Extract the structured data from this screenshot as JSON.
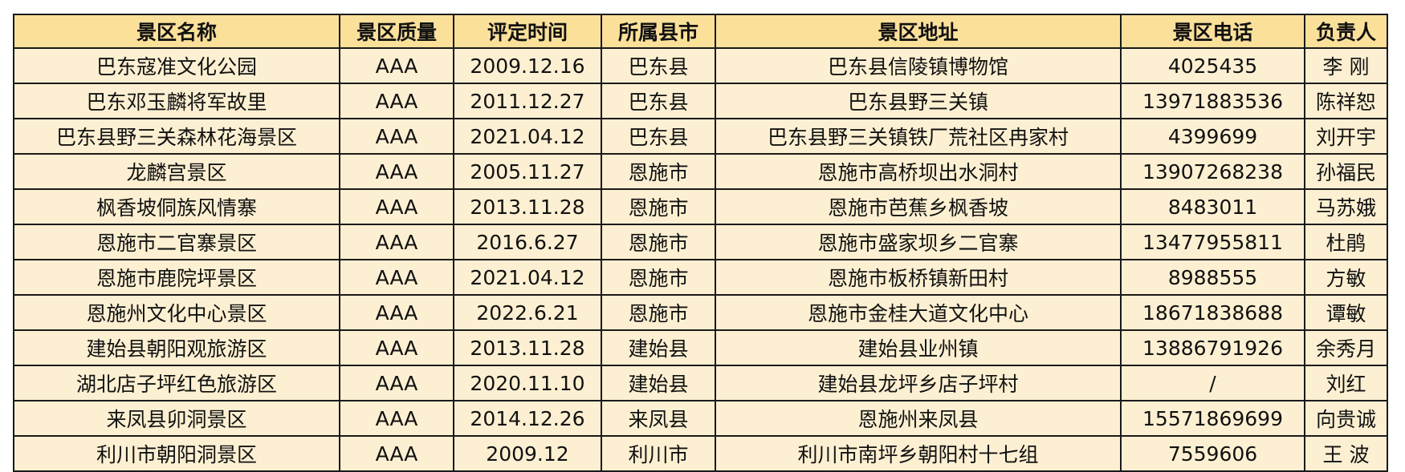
{
  "table": {
    "headers": [
      "景区名称",
      "景区质量",
      "评定时间",
      "所属县市",
      "景区地址",
      "景区电话",
      "负责人"
    ],
    "rows": [
      [
        "巴东寇准文化公园",
        "AAA",
        "2009.12.16",
        "巴东县",
        "巴东县信陵镇博物馆",
        "4025435",
        "李 刚"
      ],
      [
        "巴东邓玉麟将军故里",
        "AAA",
        "2011.12.27",
        "巴东县",
        "巴东县野三关镇",
        "13971883536",
        "陈祥恕"
      ],
      [
        "巴东县野三关森林花海景区",
        "AAA",
        "2021.04.12",
        "巴东县",
        "巴东县野三关镇铁厂荒社区冉家村",
        "4399699",
        "刘开宇"
      ],
      [
        "龙麟宫景区",
        "AAA",
        "2005.11.27",
        "恩施市",
        "恩施市高桥坝出水洞村",
        "13907268238",
        "孙福民"
      ],
      [
        "枫香坡侗族风情寨",
        "AAA",
        "2013.11.28",
        "恩施市",
        "恩施市芭蕉乡枫香坡",
        "8483011",
        "马苏娥"
      ],
      [
        "恩施市二官寨景区",
        "AAA",
        "2016.6.27",
        "恩施市",
        "恩施市盛家坝乡二官寨",
        "13477955811",
        "杜鹃"
      ],
      [
        "恩施市鹿院坪景区",
        "AAA",
        "2021.04.12",
        "恩施市",
        "恩施市板桥镇新田村",
        "8988555",
        "方敏"
      ],
      [
        "恩施州文化中心景区",
        "AAA",
        "2022.6.21",
        "恩施市",
        "恩施市金桂大道文化中心",
        "18671838688",
        "谭敏"
      ],
      [
        "建始县朝阳观旅游区",
        "AAA",
        "2013.11.28",
        "建始县",
        "建始县业州镇",
        "13886791926",
        "余秀月"
      ],
      [
        "湖北店子坪红色旅游区",
        "AAA",
        "2020.11.10",
        "建始县",
        "建始县龙坪乡店子坪村",
        "/",
        "刘红"
      ],
      [
        "来凤县卯洞景区",
        "AAA",
        "2014.12.26",
        "来凤县",
        "恩施州来凤县",
        "15571869699",
        "向贵诚"
      ],
      [
        "利川市朝阳洞景区",
        "AAA",
        "2009.12",
        "利川市",
        "利川市南坪乡朝阳村十七组",
        "7559606",
        "王 波"
      ]
    ]
  },
  "colors": {
    "header_bg": "#fbe09a",
    "row_bg": "#fdf0d2",
    "border": "#1a1a1a"
  }
}
